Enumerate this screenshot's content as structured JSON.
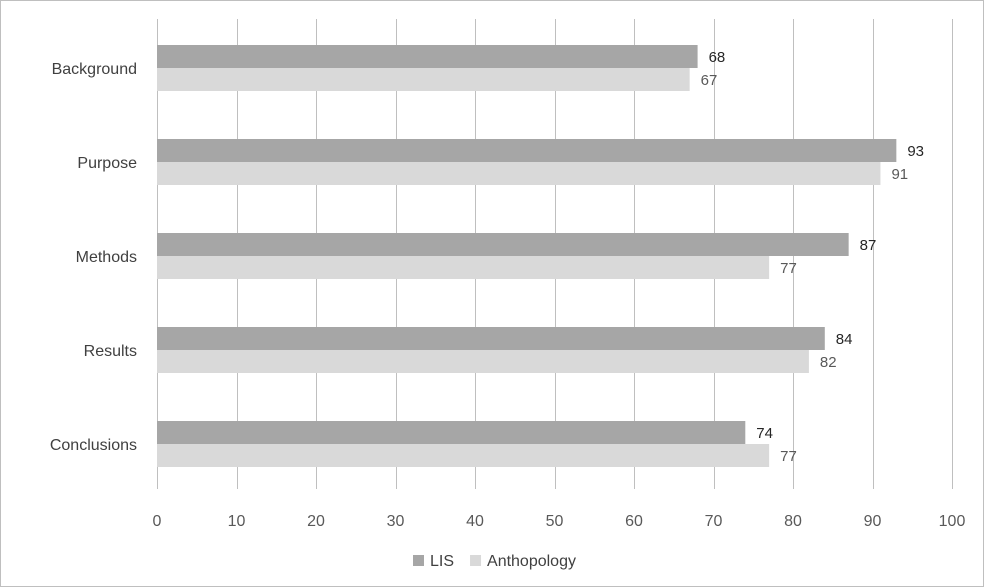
{
  "chart_data": {
    "type": "bar",
    "orientation": "horizontal",
    "categories": [
      "Background",
      "Purpose",
      "Methods",
      "Results",
      "Conclusions"
    ],
    "series": [
      {
        "name": "LIS",
        "values": [
          68,
          93,
          87,
          84,
          74
        ],
        "color": "#a6a6a6"
      },
      {
        "name": "Anthopology",
        "values": [
          67,
          91,
          77,
          82,
          77
        ],
        "color": "#d9d9d9"
      }
    ],
    "xlim": [
      0,
      100
    ],
    "xticks": [
      0,
      10,
      20,
      30,
      40,
      50,
      60,
      70,
      80,
      90,
      100
    ],
    "grid": true,
    "gridline_color": "#bfbfbf",
    "legend_position": "bottom",
    "data_labels": true
  }
}
